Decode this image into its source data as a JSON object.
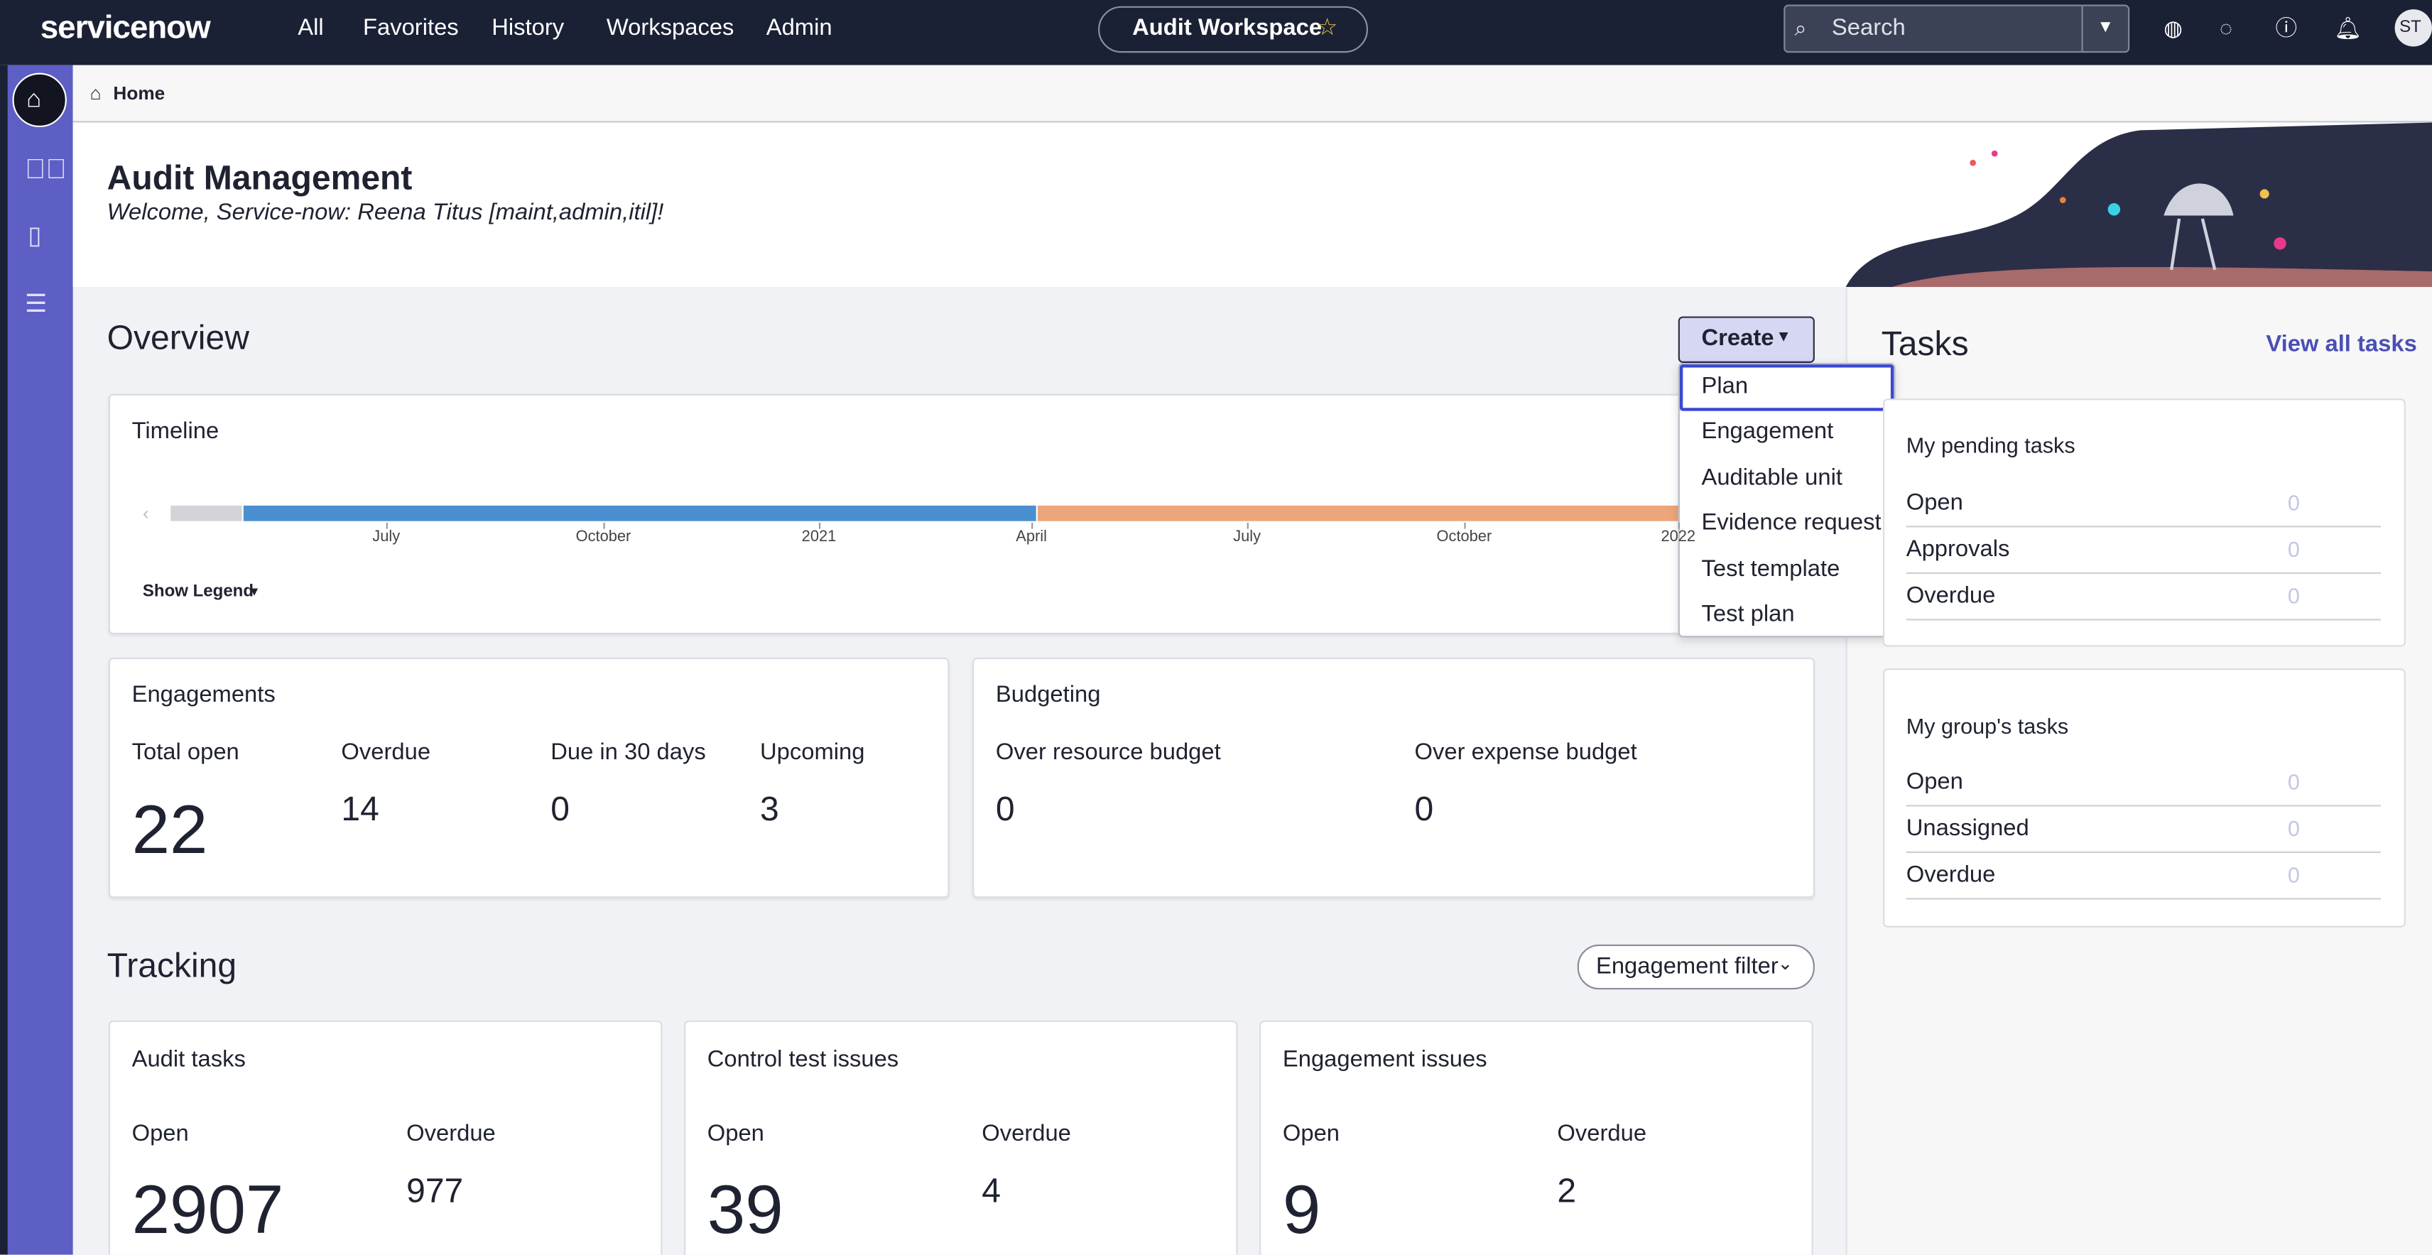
{
  "nav": {
    "logo": "servicenow",
    "menu": [
      "All",
      "Favorites",
      "History",
      "Workspaces",
      "Admin"
    ],
    "workspace": "Audit Workspace",
    "search": "Search",
    "avatar": "ST"
  },
  "breadcrumb": "Home",
  "header": {
    "title": "Audit Management",
    "welcome": "Welcome, Service-now: Reena Titus [maint,admin,itil]!"
  },
  "overview": {
    "title": "Overview",
    "create": "Create",
    "create_menu": [
      "Plan",
      "Engagement",
      "Auditable unit",
      "Evidence request",
      "Test template",
      "Test plan"
    ],
    "timeline": {
      "title": "Timeline",
      "axis_labels": [
        "July",
        "October",
        "2021",
        "April",
        "July",
        "October",
        "2022"
      ],
      "legend_toggle": "Show Legend"
    },
    "engagements": {
      "title": "Engagements",
      "metrics": [
        {
          "label": "Total open",
          "value": 22
        },
        {
          "label": "Overdue",
          "value": 14
        },
        {
          "label": "Due in 30 days",
          "value": 0
        },
        {
          "label": "Upcoming",
          "value": 3
        }
      ]
    },
    "budgeting": {
      "title": "Budgeting",
      "metrics": [
        {
          "label": "Over resource budget",
          "value": 0
        },
        {
          "label": "Over expense budget",
          "value": 0
        }
      ]
    }
  },
  "tracking": {
    "title": "Tracking",
    "filter": "Engagement filter",
    "cards": [
      {
        "title": "Audit tasks",
        "metrics": [
          {
            "label": "Open",
            "value": 2907
          },
          {
            "label": "Overdue",
            "value": 977
          }
        ]
      },
      {
        "title": "Control test issues",
        "metrics": [
          {
            "label": "Open",
            "value": 39
          },
          {
            "label": "Overdue",
            "value": 4
          }
        ]
      },
      {
        "title": "Engagement issues",
        "metrics": [
          {
            "label": "Open",
            "value": 9
          },
          {
            "label": "Overdue",
            "value": 2
          }
        ]
      }
    ]
  },
  "tasks": {
    "title": "Tasks",
    "view_all": "View all tasks",
    "cards": [
      {
        "title": "My pending tasks",
        "rows": [
          {
            "label": "Open",
            "value": 0
          },
          {
            "label": "Approvals",
            "value": 0
          },
          {
            "label": "Overdue",
            "value": 0
          }
        ]
      },
      {
        "title": "My group's tasks",
        "rows": [
          {
            "label": "Open",
            "value": 0
          },
          {
            "label": "Unassigned",
            "value": 0
          },
          {
            "label": "Overdue",
            "value": 0
          }
        ]
      }
    ]
  }
}
